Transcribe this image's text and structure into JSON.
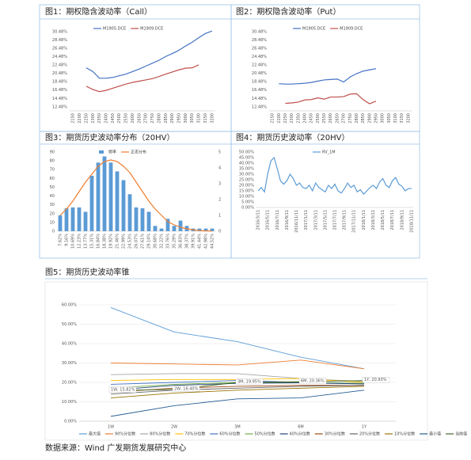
{
  "chart_data": [
    {
      "type": "line",
      "title": "图1：期权隐含波动率（Call）",
      "categories": [
        "2150",
        "2200",
        "2250",
        "2300",
        "2350",
        "2400",
        "2450",
        "2500",
        "2550",
        "2600",
        "2650",
        "2700",
        "2750",
        "2800",
        "2850",
        "2900",
        "2950",
        "3000",
        "3050",
        "3100",
        "3150",
        "3200"
      ],
      "series": [
        {
          "name": "M1905.DCE",
          "color": "#4472c4",
          "values": [
            null,
            null,
            21.8,
            20.9,
            19.3,
            19.3,
            19.5,
            19.9,
            20.3,
            20.9,
            21.5,
            22.2,
            22.9,
            23.6,
            24.5,
            25.2,
            26.0,
            27.0,
            27.9,
            29.0,
            30.0,
            30.6
          ]
        },
        {
          "name": "M1909.DCE",
          "color": "#c0504d",
          "values": [
            null,
            null,
            17.4,
            16.6,
            16.1,
            16.4,
            16.9,
            17.4,
            17.9,
            18.3,
            18.6,
            18.9,
            19.2,
            19.7,
            20.3,
            20.8,
            21.3,
            21.7,
            21.8,
            22.5,
            null,
            null
          ]
        }
      ],
      "ylim": [
        11.5,
        31.2
      ],
      "yticks": [
        {
          "value": 12.48,
          "label": "12.48%"
        },
        {
          "value": 14.48,
          "label": "14.48%"
        },
        {
          "value": 16.48,
          "label": "16.48%"
        },
        {
          "value": 18.48,
          "label": "18.48%"
        },
        {
          "value": 20.48,
          "label": "20.48%"
        },
        {
          "value": 22.48,
          "label": "22.48%"
        },
        {
          "value": 24.48,
          "label": "24.48%"
        },
        {
          "value": 26.48,
          "label": "26.48%"
        },
        {
          "value": 28.48,
          "label": "28.48%"
        },
        {
          "value": 30.48,
          "label": "30.48%"
        }
      ],
      "grid": false,
      "legend": "top"
    },
    {
      "type": "line",
      "title": "图2：期权隐含波动率（Put）",
      "categories": [
        "2150",
        "2200",
        "2250",
        "2300",
        "2350",
        "2400",
        "2450",
        "2500",
        "2550",
        "2600",
        "2650",
        "2700",
        "2750",
        "2800",
        "2850",
        "2900",
        "2950",
        "3000",
        "3050",
        "3100",
        "3150",
        "3200"
      ],
      "series": [
        {
          "name": "M1905.DCE",
          "color": "#4472c4",
          "values": [
            null,
            18.0,
            17.9,
            17.9,
            18.0,
            18.1,
            18.3,
            18.6,
            18.9,
            19.0,
            19.1,
            18.4,
            19.6,
            20.4,
            21.0,
            21.3,
            21.6,
            null,
            null,
            null,
            null,
            null
          ]
        },
        {
          "name": "M1909.DCE",
          "color": "#c0504d",
          "values": [
            null,
            null,
            13.3,
            13.4,
            13.6,
            14.1,
            14.2,
            14.6,
            14.3,
            14.8,
            14.8,
            14.9,
            15.5,
            15.6,
            14.2,
            13.2,
            13.8,
            null,
            null,
            null,
            null,
            null
          ]
        }
      ],
      "ylim": [
        11.5,
        31.2
      ],
      "yticks": [
        {
          "value": 12.48,
          "label": "12.48%"
        },
        {
          "value": 14.48,
          "label": "14.48%"
        },
        {
          "value": 16.48,
          "label": "16.48%"
        },
        {
          "value": 18.48,
          "label": "18.48%"
        },
        {
          "value": 20.48,
          "label": "20.48%"
        },
        {
          "value": 22.48,
          "label": "22.48%"
        },
        {
          "value": 24.48,
          "label": "24.48%"
        },
        {
          "value": 26.48,
          "label": "26.48%"
        },
        {
          "value": 28.48,
          "label": "28.48%"
        },
        {
          "value": 30.48,
          "label": "30.48%"
        }
      ],
      "grid": false,
      "legend": "top"
    },
    {
      "type": "combo",
      "title": "图3：期货历史波动率分布（20HV）",
      "categories": [
        "7.62%",
        "9.16%",
        "10.69%",
        "12.23%",
        "13.77%",
        "15.31%",
        "16.84%",
        "18.38%",
        "19.92%",
        "21.46%",
        "22.99%",
        "24.53%",
        "26.07%",
        "27.61%",
        "29.14%",
        "30.68%",
        "32.22%",
        "33.76%",
        "35.29%",
        "36.83%",
        "38.37%",
        "39.91%",
        "41.44%",
        "42.98%",
        "44.52%"
      ],
      "series": [
        {
          "name": "频率",
          "type": "bar",
          "color": "#5b9bd5",
          "values": [
            18,
            26,
            27,
            27,
            22,
            63,
            78,
            85,
            78,
            68,
            58,
            42,
            27,
            26,
            22,
            6,
            3,
            14,
            6,
            12,
            6,
            3,
            3,
            3,
            3
          ]
        },
        {
          "name": "正态分布",
          "type": "line",
          "axis": "y2",
          "color": "#ed7d31",
          "values": [
            1.0,
            1.4,
            1.9,
            2.5,
            3.1,
            3.6,
            4.1,
            4.4,
            4.5,
            4.4,
            4.1,
            3.7,
            3.1,
            2.5,
            1.9,
            1.4,
            1.0,
            0.6,
            0.4,
            0.25,
            0.15,
            0.08,
            0.04,
            0.02,
            0.01
          ]
        }
      ],
      "ylim": [
        0,
        90
      ],
      "yticks": [
        0,
        10,
        20,
        30,
        40,
        50,
        60,
        70,
        80,
        90
      ],
      "y2lim": [
        0,
        5
      ],
      "y2ticks": [
        0,
        1,
        2,
        3,
        4,
        5
      ],
      "grid": false,
      "legend": "top"
    },
    {
      "type": "line",
      "title": "图4：期货历史波动率（20HV）",
      "categories": [
        "2016/3/11",
        null,
        null,
        "2016/5/11",
        null,
        null,
        "2016/7/11",
        null,
        null,
        "2016/9/11",
        null,
        null,
        "2016/11/11",
        null,
        null,
        "2017/1/11",
        null,
        null,
        "2017/3/11",
        null,
        null,
        "2017/5/11",
        null,
        null,
        "2017/7/11",
        null,
        null,
        "2017/9/11",
        null,
        null,
        "2017/11/11",
        null,
        null,
        "2018/1/11",
        null,
        null,
        "2018/3/11",
        null,
        null,
        "2018/5/11",
        null,
        null,
        "2018/7/11",
        null,
        null,
        "2018/9/11",
        null,
        null,
        "2018/11/11"
      ],
      "series": [
        {
          "name": "RV_1M",
          "color": "#5b9bd5",
          "values": [
            15,
            18,
            14,
            30,
            42,
            45,
            35,
            24,
            21,
            24,
            30,
            26,
            20,
            22,
            18,
            17,
            20,
            15,
            22,
            18,
            16,
            14,
            20,
            17,
            21,
            15,
            13,
            17,
            22,
            18,
            20,
            14,
            16,
            12,
            15,
            18,
            20,
            17,
            23,
            26,
            20,
            18,
            24,
            27,
            21,
            19,
            15,
            17,
            17
          ]
        }
      ],
      "ylim": [
        0,
        50
      ],
      "yticks": [
        {
          "value": 0,
          "label": "0.00%"
        },
        {
          "value": 5,
          "label": "5.00%"
        },
        {
          "value": 10,
          "label": "10.00%"
        },
        {
          "value": 15,
          "label": "15.00%"
        },
        {
          "value": 20,
          "label": "20.00%"
        },
        {
          "value": 25,
          "label": "25.00%"
        },
        {
          "value": 30,
          "label": "30.00%"
        },
        {
          "value": 35,
          "label": "35.00%"
        },
        {
          "value": 40,
          "label": "40.00%"
        },
        {
          "value": 45,
          "label": "45.00%"
        },
        {
          "value": 50,
          "label": "50.00%"
        }
      ],
      "grid": false,
      "legend": "top"
    },
    {
      "type": "line",
      "title": "图5：期货历史波动率锥",
      "categories": [
        "1W",
        "2W",
        "3M",
        "6M",
        "1Y"
      ],
      "series": [
        {
          "name": "最大值",
          "color": "#5b9bd5",
          "values": [
            58.6,
            46,
            41,
            33,
            27
          ]
        },
        {
          "name": "90%分位数",
          "color": "#ed7d31",
          "values": [
            30,
            29.5,
            29,
            31.5,
            27
          ]
        },
        {
          "name": "80%分位数",
          "color": "#a5a5a5",
          "values": [
            24,
            24.5,
            24.5,
            22,
            20.5
          ]
        },
        {
          "name": "70%分位数",
          "color": "#ffc000",
          "values": [
            21,
            21.5,
            21.5,
            22,
            20
          ]
        },
        {
          "name": "60%分位数",
          "color": "#4472c4",
          "values": [
            19,
            20,
            21,
            20,
            19.5
          ]
        },
        {
          "name": "50%分位数",
          "color": "#70ad47",
          "values": [
            17,
            19,
            20,
            20,
            19.5
          ]
        },
        {
          "name": "40%分位数",
          "color": "#264478",
          "values": [
            16,
            18.5,
            19.5,
            19.8,
            19.2
          ]
        },
        {
          "name": "30%分位数",
          "color": "#9e480e",
          "values": [
            15,
            17,
            18,
            18.5,
            18.5
          ]
        },
        {
          "name": "20%分位数",
          "color": "#636363",
          "values": [
            14,
            16,
            17,
            18,
            18.5
          ]
        },
        {
          "name": "10%分位数",
          "color": "#997300",
          "values": [
            12,
            14.5,
            16,
            17,
            18
          ]
        },
        {
          "name": "最小值",
          "color": "#255e91",
          "values": [
            2.5,
            8,
            11.5,
            12,
            16
          ]
        },
        {
          "name": "当前值",
          "color": "#43682b",
          "values": [
            15.82,
            16.4,
            19.95,
            20.36,
            20.93
          ],
          "value_labels": [
            "1W, 15.82%",
            "2W, 16.40%",
            "3M, 19.95%",
            "6M, 20.36%",
            "1Y, 20.93%"
          ]
        }
      ],
      "ylim": [
        0,
        60
      ],
      "yticks": [
        {
          "value": 0,
          "label": "0.00%"
        },
        {
          "value": 10,
          "label": "10.00%"
        },
        {
          "value": 20,
          "label": "20.00%"
        },
        {
          "value": 30,
          "label": "30.00%"
        },
        {
          "value": 40,
          "label": "40.00%"
        },
        {
          "value": 50,
          "label": "50.00%"
        },
        {
          "value": 60,
          "label": "60.00%"
        }
      ],
      "grid": true,
      "legend": "bottom"
    }
  ],
  "source": "数据来源：Wind 广发期货发展研究中心"
}
